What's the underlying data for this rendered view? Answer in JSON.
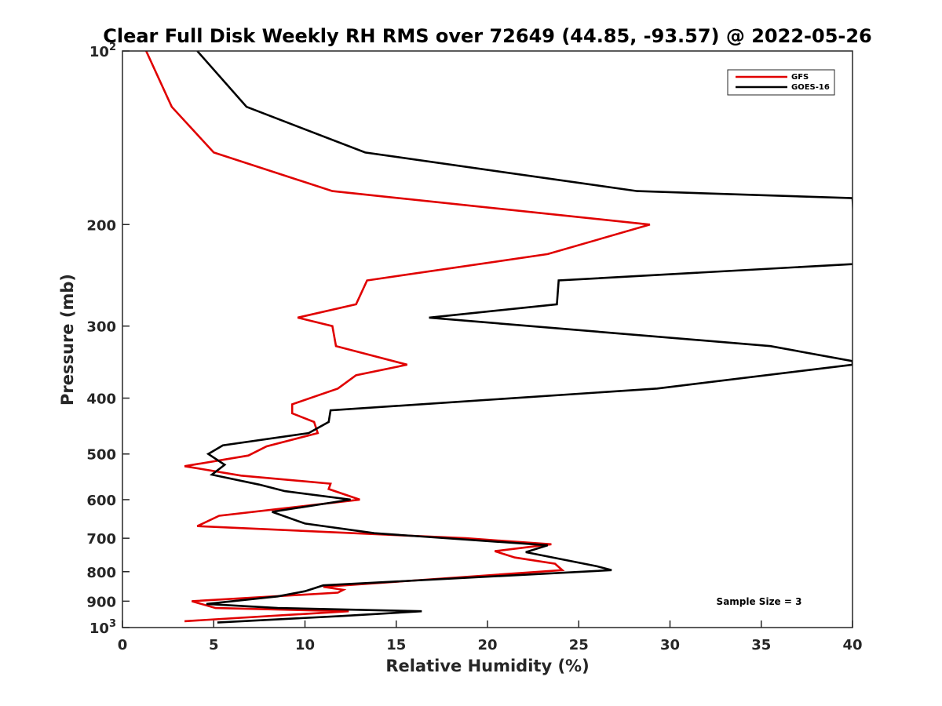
{
  "chart_data": {
    "type": "line",
    "title": "Clear Full Disk Weekly RH RMS over 72649 (44.85, -93.57) @ 2022-05-26",
    "xlabel": "Relative Humidity (%)",
    "ylabel": "Pressure (mb)",
    "xlim": [
      0,
      40
    ],
    "ylim": [
      100,
      1000
    ],
    "y_scale": "log",
    "y_reversed": true,
    "grid": false,
    "x_ticks": [
      0,
      5,
      10,
      15,
      20,
      25,
      30,
      35,
      40
    ],
    "x_tick_labels": [
      "0",
      "5",
      "10",
      "15",
      "20",
      "25",
      "30",
      "35",
      "40"
    ],
    "y_ticks": [
      100,
      200,
      300,
      400,
      500,
      600,
      700,
      800,
      900,
      1000
    ],
    "y_tick_labels": [
      {
        "base": "10",
        "exp": "2"
      },
      {
        "base": "200",
        "exp": ""
      },
      {
        "base": "300",
        "exp": ""
      },
      {
        "base": "400",
        "exp": ""
      },
      {
        "base": "500",
        "exp": ""
      },
      {
        "base": "600",
        "exp": ""
      },
      {
        "base": "700",
        "exp": ""
      },
      {
        "base": "800",
        "exp": ""
      },
      {
        "base": "900",
        "exp": ""
      },
      {
        "base": "10",
        "exp": "3"
      }
    ],
    "legend_position": "top-right",
    "annotation": "Sample Size = 3",
    "series": [
      {
        "name": "GFS",
        "color": "#e00000",
        "points": [
          {
            "x": 1.3,
            "p": 100
          },
          {
            "x": 2.7,
            "p": 125
          },
          {
            "x": 5.0,
            "p": 150
          },
          {
            "x": 11.5,
            "p": 175
          },
          {
            "x": 28.9,
            "p": 200
          },
          {
            "x": 23.3,
            "p": 225
          },
          {
            "x": 13.4,
            "p": 250
          },
          {
            "x": 12.8,
            "p": 275
          },
          {
            "x": 9.6,
            "p": 290
          },
          {
            "x": 11.5,
            "p": 300
          },
          {
            "x": 11.7,
            "p": 325
          },
          {
            "x": 15.6,
            "p": 350
          },
          {
            "x": 12.8,
            "p": 365
          },
          {
            "x": 11.8,
            "p": 385
          },
          {
            "x": 9.3,
            "p": 410
          },
          {
            "x": 9.3,
            "p": 425
          },
          {
            "x": 10.5,
            "p": 440
          },
          {
            "x": 10.7,
            "p": 460
          },
          {
            "x": 7.9,
            "p": 485
          },
          {
            "x": 6.9,
            "p": 503
          },
          {
            "x": 3.4,
            "p": 525
          },
          {
            "x": 6.5,
            "p": 545
          },
          {
            "x": 11.4,
            "p": 563
          },
          {
            "x": 11.3,
            "p": 575
          },
          {
            "x": 13.0,
            "p": 600
          },
          {
            "x": 5.3,
            "p": 640
          },
          {
            "x": 4.1,
            "p": 667
          },
          {
            "x": 18.8,
            "p": 700
          },
          {
            "x": 23.5,
            "p": 717
          },
          {
            "x": 20.4,
            "p": 737
          },
          {
            "x": 21.5,
            "p": 756
          },
          {
            "x": 23.7,
            "p": 775
          },
          {
            "x": 24.1,
            "p": 795
          },
          {
            "x": 11.0,
            "p": 850
          },
          {
            "x": 12.1,
            "p": 860
          },
          {
            "x": 11.8,
            "p": 870
          },
          {
            "x": 3.8,
            "p": 900
          },
          {
            "x": 5.1,
            "p": 925
          },
          {
            "x": 12.4,
            "p": 937
          },
          {
            "x": 3.4,
            "p": 975
          }
        ]
      },
      {
        "name": "GOES-16",
        "color": "#000000",
        "points": [
          {
            "x": 4.1,
            "p": 100
          },
          {
            "x": 6.8,
            "p": 125
          },
          {
            "x": 13.3,
            "p": 150
          },
          {
            "x": 28.2,
            "p": 175
          },
          {
            "x": 40.0,
            "p": 180
          },
          {
            "x": 40.2,
            "p": 234
          },
          {
            "x": 23.9,
            "p": 250
          },
          {
            "x": 23.8,
            "p": 275
          },
          {
            "x": 16.8,
            "p": 290
          },
          {
            "x": 35.5,
            "p": 325
          },
          {
            "x": 40.0,
            "p": 345
          },
          {
            "x": 40.0,
            "p": 350
          },
          {
            "x": 29.3,
            "p": 385
          },
          {
            "x": 11.4,
            "p": 420
          },
          {
            "x": 11.3,
            "p": 440
          },
          {
            "x": 10.2,
            "p": 460
          },
          {
            "x": 5.5,
            "p": 483
          },
          {
            "x": 4.7,
            "p": 500
          },
          {
            "x": 5.6,
            "p": 522
          },
          {
            "x": 4.9,
            "p": 543
          },
          {
            "x": 7.5,
            "p": 565
          },
          {
            "x": 8.9,
            "p": 580
          },
          {
            "x": 12.5,
            "p": 600
          },
          {
            "x": 8.2,
            "p": 630
          },
          {
            "x": 10.0,
            "p": 660
          },
          {
            "x": 13.8,
            "p": 686
          },
          {
            "x": 23.3,
            "p": 720
          },
          {
            "x": 22.1,
            "p": 740
          },
          {
            "x": 26.0,
            "p": 783
          },
          {
            "x": 26.8,
            "p": 795
          },
          {
            "x": 11.0,
            "p": 845
          },
          {
            "x": 10.0,
            "p": 865
          },
          {
            "x": 8.5,
            "p": 883
          },
          {
            "x": 4.6,
            "p": 910
          },
          {
            "x": 8.5,
            "p": 925
          },
          {
            "x": 16.4,
            "p": 937
          },
          {
            "x": 12.0,
            "p": 955
          },
          {
            "x": 5.2,
            "p": 980
          }
        ]
      }
    ]
  }
}
